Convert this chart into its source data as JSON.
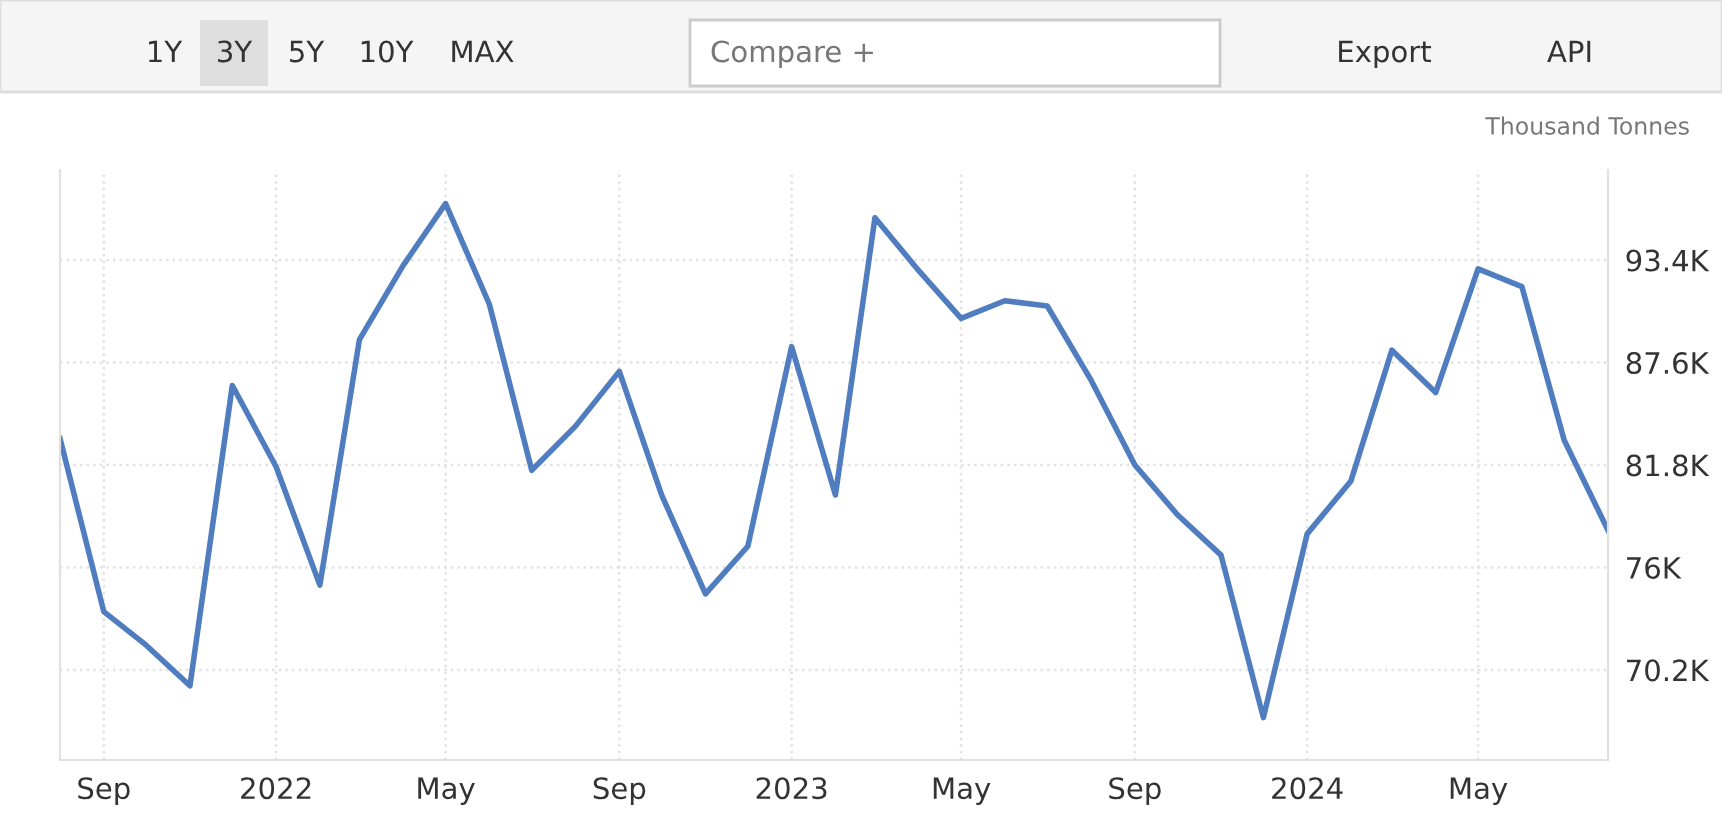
{
  "chart_data": {
    "type": "line",
    "ylabel": "Thousand Tonnes",
    "annotations": [
      "1Y",
      "3Y",
      "5Y",
      "10Y",
      "MAX",
      "Compare +",
      "Export",
      "API"
    ],
    "x": [
      "2021-08",
      "2021-09",
      "2021-10",
      "2021-11",
      "2021-12",
      "2022-01",
      "2022-02",
      "2022-03",
      "2022-04",
      "2022-05",
      "2022-06",
      "2022-07",
      "2022-08",
      "2022-09",
      "2022-10",
      "2022-11",
      "2022-12",
      "2023-01",
      "2023-02",
      "2023-03",
      "2023-04",
      "2023-05",
      "2023-06",
      "2023-07",
      "2023-08",
      "2023-09",
      "2023-10",
      "2023-11",
      "2023-12",
      "2024-01",
      "2024-02",
      "2024-03",
      "2024-04",
      "2024-05",
      "2024-06",
      "2024-07",
      "2024-08"
    ],
    "series": [
      {
        "color": "#4f7dbf",
        "values": [
          83300,
          73500,
          71600,
          69300,
          86300,
          81700,
          75000,
          88900,
          93100,
          96600,
          90900,
          81500,
          84000,
          87100,
          80100,
          74500,
          77200,
          88500,
          80100,
          95800,
          92800,
          90100,
          91100,
          90800,
          86600,
          81800,
          79000,
          76700,
          67500,
          77900,
          80900,
          88300,
          85900,
          92900,
          91900,
          83200,
          78100
        ]
      }
    ],
    "xlim": [
      "2021-08",
      "2024-08"
    ],
    "xticks": [
      {
        "value": "2021-09",
        "label": "Sep"
      },
      {
        "value": "2022-01",
        "label": "2022"
      },
      {
        "value": "2022-05",
        "label": "May"
      },
      {
        "value": "2022-09",
        "label": "Sep"
      },
      {
        "value": "2023-01",
        "label": "2023"
      },
      {
        "value": "2023-05",
        "label": "May"
      },
      {
        "value": "2023-09",
        "label": "Sep"
      },
      {
        "value": "2024-01",
        "label": "2024"
      },
      {
        "value": "2024-05",
        "label": "May"
      }
    ],
    "ylim": [
      65100,
      98500
    ],
    "yticks": [
      {
        "value": 70200,
        "label": "70.2K"
      },
      {
        "value": 76000,
        "label": "76K"
      },
      {
        "value": 81800,
        "label": "81.8K"
      },
      {
        "value": 87600,
        "label": "87.6K"
      },
      {
        "value": 93400,
        "label": "93.4K"
      }
    ],
    "grid": true,
    "legend": false,
    "marker": "none",
    "line_style": "solid"
  }
}
